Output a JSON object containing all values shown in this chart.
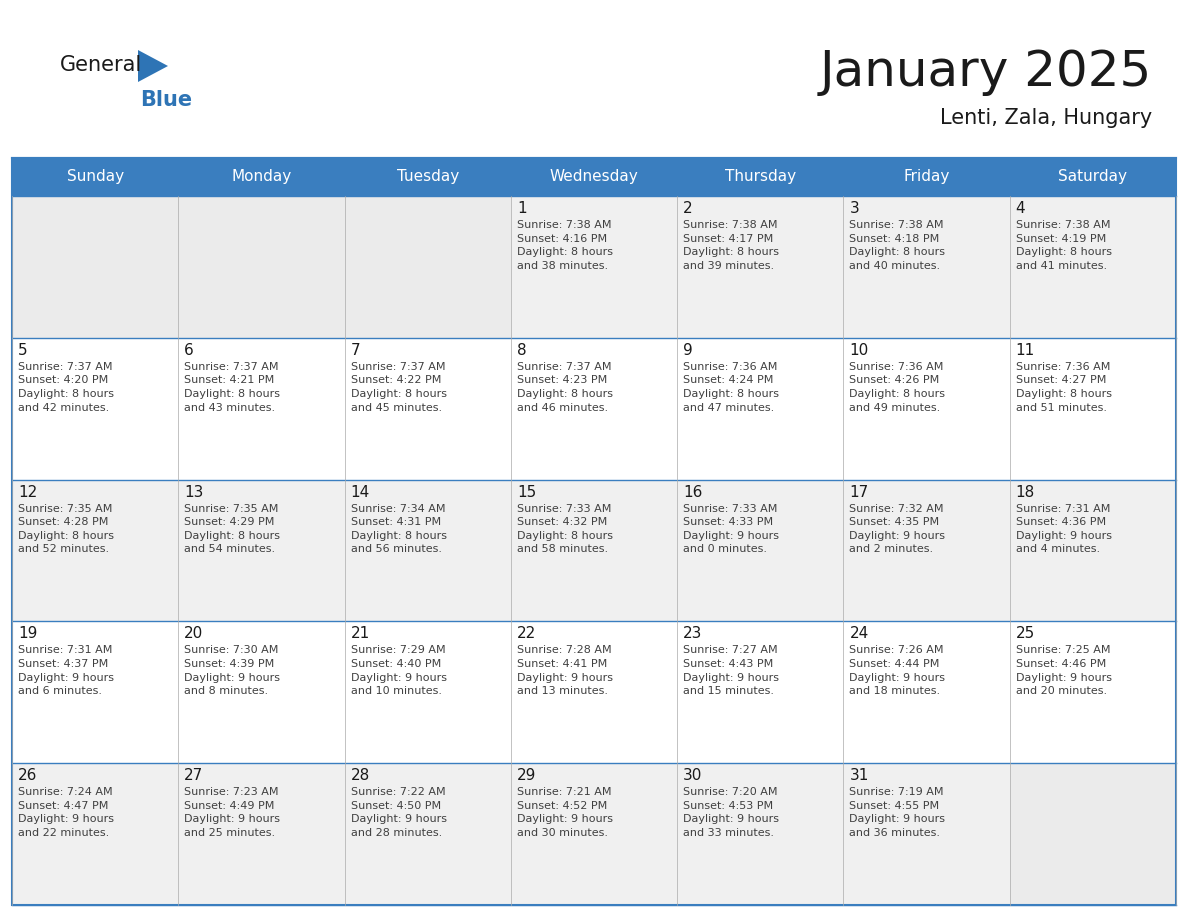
{
  "title": "January 2025",
  "subtitle": "Lenti, Zala, Hungary",
  "days_of_week": [
    "Sunday",
    "Monday",
    "Tuesday",
    "Wednesday",
    "Thursday",
    "Friday",
    "Saturday"
  ],
  "header_bg": "#3A7EBF",
  "header_text_color": "#FFFFFF",
  "border_color": "#3A7EBF",
  "text_color": "#404040",
  "day_number_color": "#1A1A1A",
  "title_color": "#1A1A1A",
  "logo_blue_color": "#2E74B5",
  "empty_cell_bg": "#EBEBEB",
  "normal_cell_bg": "#FFFFFF",
  "alt_cell_bg": "#F0F0F0",
  "weeks": [
    [
      {
        "day": 0,
        "info": ""
      },
      {
        "day": 0,
        "info": ""
      },
      {
        "day": 0,
        "info": ""
      },
      {
        "day": 1,
        "info": "Sunrise: 7:38 AM\nSunset: 4:16 PM\nDaylight: 8 hours\nand 38 minutes."
      },
      {
        "day": 2,
        "info": "Sunrise: 7:38 AM\nSunset: 4:17 PM\nDaylight: 8 hours\nand 39 minutes."
      },
      {
        "day": 3,
        "info": "Sunrise: 7:38 AM\nSunset: 4:18 PM\nDaylight: 8 hours\nand 40 minutes."
      },
      {
        "day": 4,
        "info": "Sunrise: 7:38 AM\nSunset: 4:19 PM\nDaylight: 8 hours\nand 41 minutes."
      }
    ],
    [
      {
        "day": 5,
        "info": "Sunrise: 7:37 AM\nSunset: 4:20 PM\nDaylight: 8 hours\nand 42 minutes."
      },
      {
        "day": 6,
        "info": "Sunrise: 7:37 AM\nSunset: 4:21 PM\nDaylight: 8 hours\nand 43 minutes."
      },
      {
        "day": 7,
        "info": "Sunrise: 7:37 AM\nSunset: 4:22 PM\nDaylight: 8 hours\nand 45 minutes."
      },
      {
        "day": 8,
        "info": "Sunrise: 7:37 AM\nSunset: 4:23 PM\nDaylight: 8 hours\nand 46 minutes."
      },
      {
        "day": 9,
        "info": "Sunrise: 7:36 AM\nSunset: 4:24 PM\nDaylight: 8 hours\nand 47 minutes."
      },
      {
        "day": 10,
        "info": "Sunrise: 7:36 AM\nSunset: 4:26 PM\nDaylight: 8 hours\nand 49 minutes."
      },
      {
        "day": 11,
        "info": "Sunrise: 7:36 AM\nSunset: 4:27 PM\nDaylight: 8 hours\nand 51 minutes."
      }
    ],
    [
      {
        "day": 12,
        "info": "Sunrise: 7:35 AM\nSunset: 4:28 PM\nDaylight: 8 hours\nand 52 minutes."
      },
      {
        "day": 13,
        "info": "Sunrise: 7:35 AM\nSunset: 4:29 PM\nDaylight: 8 hours\nand 54 minutes."
      },
      {
        "day": 14,
        "info": "Sunrise: 7:34 AM\nSunset: 4:31 PM\nDaylight: 8 hours\nand 56 minutes."
      },
      {
        "day": 15,
        "info": "Sunrise: 7:33 AM\nSunset: 4:32 PM\nDaylight: 8 hours\nand 58 minutes."
      },
      {
        "day": 16,
        "info": "Sunrise: 7:33 AM\nSunset: 4:33 PM\nDaylight: 9 hours\nand 0 minutes."
      },
      {
        "day": 17,
        "info": "Sunrise: 7:32 AM\nSunset: 4:35 PM\nDaylight: 9 hours\nand 2 minutes."
      },
      {
        "day": 18,
        "info": "Sunrise: 7:31 AM\nSunset: 4:36 PM\nDaylight: 9 hours\nand 4 minutes."
      }
    ],
    [
      {
        "day": 19,
        "info": "Sunrise: 7:31 AM\nSunset: 4:37 PM\nDaylight: 9 hours\nand 6 minutes."
      },
      {
        "day": 20,
        "info": "Sunrise: 7:30 AM\nSunset: 4:39 PM\nDaylight: 9 hours\nand 8 minutes."
      },
      {
        "day": 21,
        "info": "Sunrise: 7:29 AM\nSunset: 4:40 PM\nDaylight: 9 hours\nand 10 minutes."
      },
      {
        "day": 22,
        "info": "Sunrise: 7:28 AM\nSunset: 4:41 PM\nDaylight: 9 hours\nand 13 minutes."
      },
      {
        "day": 23,
        "info": "Sunrise: 7:27 AM\nSunset: 4:43 PM\nDaylight: 9 hours\nand 15 minutes."
      },
      {
        "day": 24,
        "info": "Sunrise: 7:26 AM\nSunset: 4:44 PM\nDaylight: 9 hours\nand 18 minutes."
      },
      {
        "day": 25,
        "info": "Sunrise: 7:25 AM\nSunset: 4:46 PM\nDaylight: 9 hours\nand 20 minutes."
      }
    ],
    [
      {
        "day": 26,
        "info": "Sunrise: 7:24 AM\nSunset: 4:47 PM\nDaylight: 9 hours\nand 22 minutes."
      },
      {
        "day": 27,
        "info": "Sunrise: 7:23 AM\nSunset: 4:49 PM\nDaylight: 9 hours\nand 25 minutes."
      },
      {
        "day": 28,
        "info": "Sunrise: 7:22 AM\nSunset: 4:50 PM\nDaylight: 9 hours\nand 28 minutes."
      },
      {
        "day": 29,
        "info": "Sunrise: 7:21 AM\nSunset: 4:52 PM\nDaylight: 9 hours\nand 30 minutes."
      },
      {
        "day": 30,
        "info": "Sunrise: 7:20 AM\nSunset: 4:53 PM\nDaylight: 9 hours\nand 33 minutes."
      },
      {
        "day": 31,
        "info": "Sunrise: 7:19 AM\nSunset: 4:55 PM\nDaylight: 9 hours\nand 36 minutes."
      },
      {
        "day": 0,
        "info": ""
      }
    ]
  ]
}
